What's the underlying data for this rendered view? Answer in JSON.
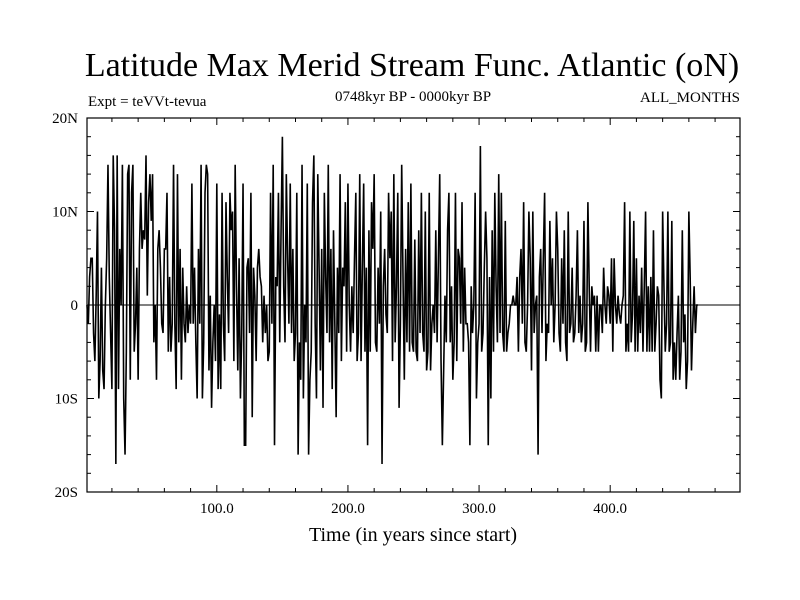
{
  "chart_data": {
    "type": "line",
    "title": "Latitude Max Merid Stream Func. Atlantic (oN)",
    "subtitle_left": "Expt = teVVt-tevua",
    "subtitle_center": "0748kyr BP - 0000kyr BP",
    "subtitle_right": "ALL_MONTHS",
    "xlabel": "Time (in years since start)",
    "ylabel": "",
    "xlim": [
      1,
      499
    ],
    "ylim": [
      -20,
      20
    ],
    "x_ticks": [
      100,
      200,
      300,
      400
    ],
    "x_tick_labels": [
      "100.0",
      "200.0",
      "300.0",
      "400.0"
    ],
    "y_ticks": [
      -20,
      -10,
      0,
      10,
      20
    ],
    "y_tick_labels": [
      "20S",
      "10S",
      "0",
      "10N",
      "20N"
    ],
    "zero_line": true,
    "grid": false,
    "series": [
      {
        "x_start": 1,
        "x_step": 1,
        "values": [
          0,
          -2,
          3,
          5,
          5,
          -3,
          -6,
          1,
          10,
          -10,
          -6,
          4,
          -7,
          -9,
          0,
          5,
          15,
          3,
          -3,
          -9,
          16,
          8,
          -17,
          16,
          -9,
          6,
          0,
          15,
          -10,
          -16,
          -5,
          14,
          15,
          -8,
          12,
          15,
          -5,
          -2,
          4,
          -8,
          6,
          12,
          6,
          8,
          7,
          16,
          1,
          11,
          14,
          9,
          14,
          -4,
          0,
          -8,
          6,
          8,
          4,
          -2,
          -3,
          6,
          6,
          12,
          -5,
          3,
          -5,
          -2,
          15,
          -2,
          -9,
          14,
          -4,
          6,
          -8,
          4,
          -2,
          -4,
          2,
          -3,
          0,
          -2,
          13,
          -2,
          4,
          -4,
          -10,
          6,
          -2,
          15,
          -10,
          -4,
          12,
          15,
          14,
          -7,
          1,
          -11,
          -4,
          0,
          -6,
          13,
          -9,
          -1,
          -9,
          12,
          -2,
          -6,
          11,
          3,
          -3,
          12,
          8,
          10,
          -6,
          15,
          2,
          -7,
          5,
          -10,
          -3,
          13,
          -15,
          -15,
          4,
          5,
          -3,
          12,
          -12,
          4,
          1,
          -6,
          4,
          6,
          3,
          2,
          -4,
          1,
          -3,
          0,
          -6,
          -5,
          12,
          -2,
          15,
          -15,
          3,
          2,
          12,
          -4,
          8,
          18,
          2,
          -4,
          14,
          5,
          -2,
          13,
          -3,
          6,
          -6,
          -3,
          12,
          -16,
          -4,
          -8,
          15,
          -10,
          0,
          -4,
          13,
          -16,
          -8,
          -5,
          11,
          16,
          -2,
          -10,
          14,
          4,
          -7,
          6,
          -11,
          12,
          3,
          -3,
          15,
          -4,
          6,
          -9,
          8,
          -2,
          -12,
          4,
          -3,
          14,
          -6,
          4,
          2,
          11,
          -5,
          13,
          0,
          -5,
          2,
          -3,
          5,
          12,
          -6,
          -3,
          14,
          -6,
          4,
          13,
          -5,
          4,
          -15,
          8,
          -5,
          11,
          6,
          14,
          -4,
          -5,
          4,
          -2,
          10,
          -17,
          2,
          6,
          -1,
          -3,
          12,
          5,
          10,
          -6,
          14,
          -4,
          2,
          12,
          -11,
          -2,
          15,
          3,
          -8,
          6,
          -4,
          11,
          -5,
          13,
          -4,
          -5,
          7,
          -5,
          -6,
          8,
          -3,
          12,
          -3,
          -5,
          10,
          -7,
          -5,
          12,
          -7,
          -2,
          0,
          -3,
          8,
          -4,
          5,
          14,
          -6,
          -15,
          -7,
          1,
          -4,
          8,
          12,
          -4,
          2,
          -8,
          -4,
          12,
          -6,
          6,
          5,
          -2,
          11,
          -5,
          4,
          -2,
          -2,
          -4,
          -15,
          2,
          -3,
          0,
          12,
          -10,
          -4,
          -2,
          17,
          -5,
          -3,
          4,
          10,
          5,
          -15,
          3,
          -10,
          8,
          -5,
          12,
          2,
          -4,
          14,
          -3,
          12,
          -3,
          -5,
          9,
          -5,
          -3,
          -2,
          0,
          0,
          1,
          0,
          0,
          3,
          -5,
          3,
          6,
          -2,
          11,
          -4,
          -5,
          0,
          10,
          5,
          -7,
          10,
          -3,
          0,
          1,
          -16,
          3,
          6,
          -3,
          5,
          12,
          -6,
          -2,
          -3,
          9,
          0,
          5,
          -4,
          0,
          10,
          6,
          -3,
          -5,
          5,
          -2,
          8,
          -4,
          -6,
          10,
          -3,
          -2,
          4,
          -4,
          -3,
          1,
          8,
          -3,
          1,
          -4,
          -2,
          9,
          -5,
          -4,
          11,
          2,
          -5,
          2,
          0,
          1,
          -5,
          1,
          -5,
          0,
          0,
          -3,
          4,
          0,
          -2,
          2,
          1,
          -2,
          5,
          -5,
          5,
          0,
          -2,
          1,
          -1,
          -2,
          0,
          1,
          11,
          -5,
          -2,
          -5,
          10,
          -4,
          -1,
          9,
          -5,
          5,
          -5,
          1,
          -3,
          4,
          -5,
          2,
          10,
          -5,
          2,
          -5,
          3,
          -5,
          8,
          -5,
          -2,
          2,
          1,
          -8,
          -10,
          10,
          2,
          -5,
          -2,
          10,
          -5,
          -4,
          9,
          -8,
          -4,
          -8,
          -3,
          1,
          -8,
          -5,
          8,
          -4,
          -1,
          -9,
          -6,
          10,
          3,
          -7,
          -2,
          2,
          -3,
          0,
          0
        ]
      }
    ]
  }
}
